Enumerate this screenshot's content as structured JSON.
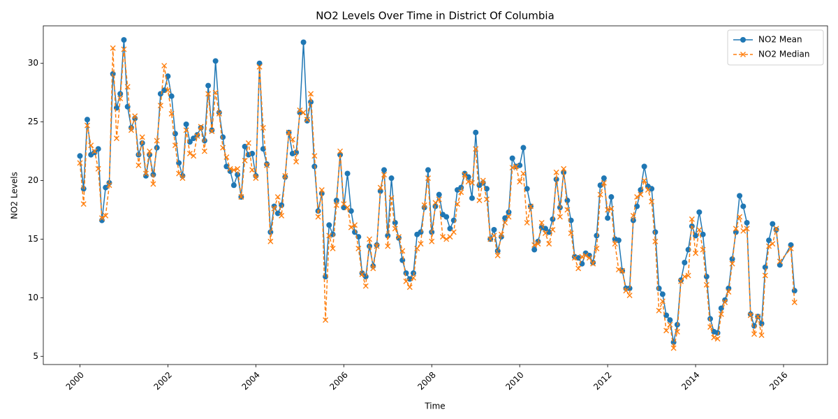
{
  "chart_data": {
    "type": "line",
    "title": "NO2 Levels Over Time in District Of Columbia",
    "xlabel": "Time",
    "ylabel": "NO2 Levels",
    "x": [
      "2000-01",
      "2000-02",
      "2000-03",
      "2000-04",
      "2000-05",
      "2000-06",
      "2000-07",
      "2000-08",
      "2000-09",
      "2000-10",
      "2000-11",
      "2000-12",
      "2001-01",
      "2001-02",
      "2001-03",
      "2001-04",
      "2001-05",
      "2001-06",
      "2001-07",
      "2001-08",
      "2001-09",
      "2001-10",
      "2001-11",
      "2001-12",
      "2002-01",
      "2002-02",
      "2002-03",
      "2002-04",
      "2002-05",
      "2002-06",
      "2002-07",
      "2002-08",
      "2002-09",
      "2002-10",
      "2002-11",
      "2002-12",
      "2003-01",
      "2003-02",
      "2003-03",
      "2003-04",
      "2003-05",
      "2003-06",
      "2003-07",
      "2003-08",
      "2003-09",
      "2003-10",
      "2003-11",
      "2003-12",
      "2004-01",
      "2004-02",
      "2004-03",
      "2004-04",
      "2004-05",
      "2004-06",
      "2004-07",
      "2004-08",
      "2004-09",
      "2004-10",
      "2004-11",
      "2004-12",
      "2005-01",
      "2005-02",
      "2005-03",
      "2005-04",
      "2005-05",
      "2005-06",
      "2005-07",
      "2005-08",
      "2005-09",
      "2005-10",
      "2005-11",
      "2005-12",
      "2006-01",
      "2006-02",
      "2006-03",
      "2006-04",
      "2006-05",
      "2006-06",
      "2006-07",
      "2006-08",
      "2006-09",
      "2006-10",
      "2006-11",
      "2006-12",
      "2007-01",
      "2007-02",
      "2007-03",
      "2007-04",
      "2007-05",
      "2007-06",
      "2007-07",
      "2007-08",
      "2007-09",
      "2007-10",
      "2007-11",
      "2007-12",
      "2008-01",
      "2008-02",
      "2008-03",
      "2008-04",
      "2008-05",
      "2008-06",
      "2008-07",
      "2008-08",
      "2008-09",
      "2008-10",
      "2008-11",
      "2008-12",
      "2009-01",
      "2009-02",
      "2009-03",
      "2009-04",
      "2009-05",
      "2009-06",
      "2009-07",
      "2009-08",
      "2009-09",
      "2009-10",
      "2009-11",
      "2009-12",
      "2010-01",
      "2010-02",
      "2010-03",
      "2010-04",
      "2010-05",
      "2010-06",
      "2010-07",
      "2010-08",
      "2010-09",
      "2010-10",
      "2010-11",
      "2010-12",
      "2011-01",
      "2011-02",
      "2011-03",
      "2011-04",
      "2011-05",
      "2011-06",
      "2011-07",
      "2011-08",
      "2011-09",
      "2011-10",
      "2011-11",
      "2011-12",
      "2012-01",
      "2012-02",
      "2012-03",
      "2012-04",
      "2012-05",
      "2012-06",
      "2012-07",
      "2012-08",
      "2012-09",
      "2012-10",
      "2012-11",
      "2012-12",
      "2013-01",
      "2013-02",
      "2013-03",
      "2013-04",
      "2013-05",
      "2013-06",
      "2013-07",
      "2013-08",
      "2013-09",
      "2013-10",
      "2013-11",
      "2013-12",
      "2014-01",
      "2014-02",
      "2014-03",
      "2014-04",
      "2014-05",
      "2014-06",
      "2014-07",
      "2014-08",
      "2014-09",
      "2014-10",
      "2014-11",
      "2014-12",
      "2015-01",
      "2015-02",
      "2015-03",
      "2015-04",
      "2015-05",
      "2015-06",
      "2015-07",
      "2015-08",
      "2015-09",
      "2015-10",
      "2015-11",
      "2015-12",
      "2016-03",
      "2016-04"
    ],
    "series": [
      {
        "name": "NO2 Mean",
        "color": "#1f77b4",
        "marker": "o",
        "linestyle": "solid",
        "values": [
          22.1,
          19.3,
          25.2,
          22.2,
          22.4,
          22.7,
          16.6,
          19.4,
          19.8,
          29.1,
          26.2,
          27.4,
          32.0,
          26.3,
          24.5,
          25.3,
          22.2,
          23.2,
          20.4,
          22.2,
          20.5,
          22.8,
          27.4,
          27.7,
          28.9,
          27.2,
          24.0,
          21.5,
          20.4,
          24.8,
          23.3,
          23.6,
          23.9,
          24.5,
          23.4,
          28.1,
          24.3,
          30.2,
          25.8,
          23.7,
          21.2,
          20.8,
          19.6,
          20.5,
          18.6,
          22.9,
          22.2,
          22.3,
          20.4,
          30.0,
          22.7,
          21.4,
          15.6,
          17.8,
          17.2,
          17.9,
          20.3,
          24.1,
          22.3,
          22.4,
          25.8,
          31.8,
          25.1,
          26.7,
          21.2,
          17.4,
          18.9,
          11.8,
          16.2,
          15.4,
          18.3,
          22.2,
          17.7,
          20.6,
          17.4,
          15.6,
          15.2,
          12.1,
          11.8,
          14.4,
          12.7,
          14.5,
          19.1,
          20.9,
          15.3,
          20.2,
          16.4,
          15.1,
          13.2,
          12.1,
          11.6,
          12.1,
          15.4,
          15.6,
          17.7,
          20.9,
          15.6,
          17.8,
          18.8,
          17.1,
          16.9,
          15.9,
          16.6,
          19.2,
          19.4,
          20.6,
          20.3,
          18.5,
          24.1,
          19.6,
          19.8,
          19.3,
          15.0,
          15.8,
          14.0,
          15.2,
          16.8,
          17.3,
          21.9,
          21.2,
          21.3,
          22.8,
          19.3,
          17.8,
          14.1,
          14.8,
          16.0,
          15.9,
          15.6,
          16.7,
          20.1,
          17.7,
          20.7,
          18.3,
          16.6,
          13.5,
          13.4,
          12.9,
          13.8,
          13.6,
          13.0,
          15.3,
          19.6,
          20.2,
          16.8,
          18.6,
          15.0,
          14.9,
          12.3,
          10.8,
          10.8,
          16.6,
          17.8,
          19.2,
          21.2,
          19.5,
          19.3,
          15.6,
          10.8,
          10.3,
          8.5,
          8.1,
          6.2,
          7.7,
          11.5,
          13.0,
          14.1,
          16.1,
          15.3,
          17.3,
          15.4,
          11.8,
          8.2,
          7.1,
          7.0,
          9.1,
          9.8,
          10.8,
          13.3,
          15.6,
          18.7,
          17.8,
          16.4,
          8.6,
          7.6,
          8.4,
          7.8,
          12.6,
          14.9,
          16.3,
          15.8,
          12.8,
          14.5,
          10.6
        ]
      },
      {
        "name": "NO2 Median",
        "color": "#ff7f0e",
        "marker": "x",
        "linestyle": "dashed",
        "values": [
          21.5,
          18.0,
          24.7,
          23.0,
          22.5,
          21.0,
          16.8,
          17.0,
          19.6,
          31.3,
          23.6,
          27.0,
          31.2,
          28.0,
          24.3,
          25.5,
          21.3,
          23.7,
          20.6,
          22.5,
          19.7,
          23.4,
          26.4,
          29.8,
          27.7,
          25.7,
          23.0,
          20.6,
          20.2,
          24.3,
          22.3,
          22.1,
          23.8,
          24.6,
          22.5,
          27.4,
          24.2,
          27.5,
          25.7,
          22.8,
          22.0,
          21.0,
          20.9,
          21.0,
          18.6,
          21.7,
          23.2,
          20.9,
          20.2,
          29.7,
          24.5,
          21.3,
          14.8,
          17.6,
          18.6,
          17.0,
          20.4,
          24.1,
          23.5,
          21.6,
          26.0,
          25.8,
          25.2,
          27.4,
          22.1,
          16.9,
          19.2,
          8.1,
          15.3,
          14.2,
          17.9,
          22.5,
          18.0,
          17.7,
          16.0,
          16.2,
          14.2,
          12.0,
          11.0,
          15.0,
          12.5,
          14.4,
          19.4,
          20.5,
          14.4,
          18.5,
          15.9,
          15.2,
          14.0,
          11.4,
          10.9,
          11.7,
          14.2,
          14.6,
          17.9,
          20.2,
          14.8,
          18.1,
          18.4,
          15.2,
          15.0,
          15.2,
          15.6,
          18.0,
          19.0,
          20.5,
          19.9,
          19.8,
          22.7,
          18.3,
          20.0,
          18.4,
          15.0,
          15.3,
          13.6,
          15.4,
          16.4,
          16.9,
          21.1,
          21.2,
          19.9,
          20.6,
          16.4,
          17.8,
          14.5,
          14.6,
          16.4,
          15.5,
          14.6,
          15.8,
          20.7,
          16.9,
          21.0,
          17.5,
          15.5,
          13.4,
          12.5,
          13.5,
          13.6,
          13.4,
          12.9,
          14.2,
          18.8,
          19.8,
          17.5,
          17.6,
          14.6,
          12.4,
          12.3,
          10.6,
          10.2,
          17.0,
          18.6,
          18.8,
          20.0,
          19.2,
          18.2,
          14.8,
          8.9,
          9.7,
          7.2,
          7.7,
          5.7,
          7.1,
          11.4,
          11.8,
          11.9,
          16.7,
          13.8,
          15.8,
          14.1,
          11.1,
          7.5,
          6.6,
          6.5,
          8.6,
          9.6,
          10.5,
          12.9,
          15.9,
          16.9,
          15.7,
          15.9,
          8.5,
          6.9,
          8.4,
          6.8,
          11.9,
          14.4,
          14.6,
          15.9,
          13.1,
          14.2,
          9.6
        ]
      }
    ],
    "xlim": [
      "1999-03",
      "2017-01"
    ],
    "xticks": [
      "2000",
      "2002",
      "2004",
      "2006",
      "2008",
      "2010",
      "2012",
      "2014",
      "2016"
    ],
    "ylim": [
      4.3,
      33.2
    ],
    "yticks": [
      5,
      10,
      15,
      20,
      25,
      30
    ],
    "grid": false,
    "legend": "upper right"
  }
}
